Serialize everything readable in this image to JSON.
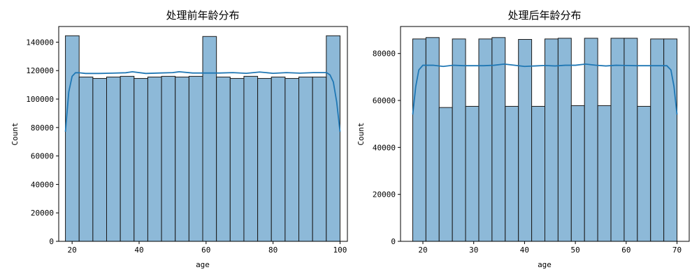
{
  "chart_data": [
    {
      "type": "bar",
      "title": "处理前年龄分布",
      "xlabel": "age",
      "ylabel": "Count",
      "xlim": [
        16,
        102.2
      ],
      "ylim": [
        0,
        151000
      ],
      "xticks": [
        20,
        40,
        60,
        80,
        100
      ],
      "yticks": [
        0,
        20000,
        40000,
        60000,
        80000,
        100000,
        120000,
        140000
      ],
      "grid": false,
      "bin_edges": [
        18,
        22.1,
        26.2,
        30.3,
        34.4,
        38.5,
        42.6,
        46.7,
        50.8,
        54.9,
        59,
        63.1,
        67.2,
        71.3,
        75.4,
        79.5,
        83.6,
        87.7,
        91.8,
        95.9,
        100
      ],
      "counts": [
        144500,
        115500,
        114500,
        115500,
        116000,
        114500,
        115500,
        116000,
        115500,
        116000,
        144000,
        115500,
        114500,
        116000,
        114500,
        115500,
        114500,
        115500,
        115500,
        144500
      ],
      "kde": {
        "x": [
          18,
          19,
          20,
          21,
          22,
          24,
          28,
          32,
          36,
          38,
          42,
          46,
          50,
          52,
          56,
          60,
          64,
          68,
          72,
          76,
          80,
          84,
          88,
          92,
          96,
          97,
          98,
          99,
          100
        ],
        "y": [
          77000,
          105000,
          116000,
          118500,
          118500,
          118000,
          118000,
          118200,
          118500,
          119200,
          118000,
          118300,
          118600,
          119200,
          118300,
          118300,
          118300,
          118600,
          118100,
          119000,
          118100,
          118600,
          118200,
          118600,
          118600,
          117000,
          112000,
          98000,
          77000
        ]
      }
    },
    {
      "type": "bar",
      "title": "处理后年龄分布",
      "xlabel": "age",
      "ylabel": "Count",
      "xlim": [
        15.6,
        72.4
      ],
      "ylim": [
        0,
        91500
      ],
      "xticks": [
        20,
        30,
        40,
        50,
        60,
        70
      ],
      "yticks": [
        0,
        20000,
        40000,
        60000,
        80000
      ],
      "grid": false,
      "bin_edges": [
        18,
        20.6,
        23.2,
        25.8,
        28.4,
        31,
        33.6,
        36.2,
        38.8,
        41.4,
        44,
        46.6,
        49.2,
        51.8,
        54.4,
        57,
        59.6,
        62.2,
        64.8,
        67.4,
        70
      ],
      "counts": [
        86200,
        86800,
        57000,
        86200,
        57500,
        86200,
        86800,
        57500,
        86000,
        57500,
        86200,
        86500,
        57800,
        86500,
        57800,
        86500,
        86500,
        57500,
        86200,
        86200
      ],
      "kde": {
        "x": [
          18,
          18.6,
          19.2,
          20,
          21,
          22,
          24,
          26,
          28,
          30,
          32,
          34,
          36,
          38,
          40,
          42,
          44,
          46,
          48,
          50,
          52,
          54,
          56,
          58,
          60,
          62,
          64,
          66,
          68,
          68.8,
          69.4,
          70
        ],
        "y": [
          54000,
          66000,
          73000,
          75000,
          75000,
          75000,
          74500,
          75000,
          74800,
          74800,
          74800,
          75000,
          75500,
          75000,
          74500,
          74700,
          74900,
          74700,
          75000,
          75000,
          75500,
          75000,
          74700,
          75000,
          74900,
          74800,
          74800,
          74800,
          74800,
          73000,
          66000,
          54000
        ]
      }
    }
  ]
}
